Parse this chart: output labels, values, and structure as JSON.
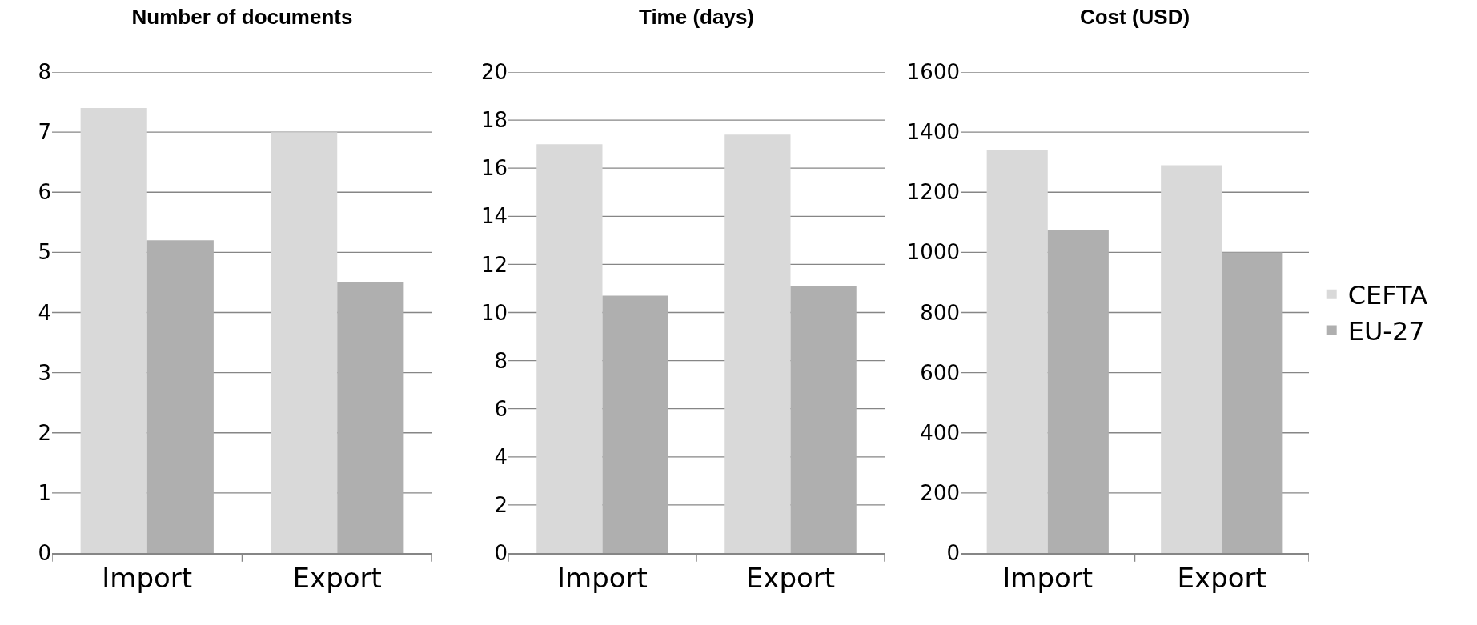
{
  "chart_data": [
    {
      "type": "bar",
      "title": "Number of documents",
      "categories": [
        "Import",
        "Export"
      ],
      "series": [
        {
          "color": "#d9d9d9",
          "values": [
            7.4,
            7.0
          ]
        },
        {
          "color": "#afafaf",
          "values": [
            5.2,
            4.5
          ]
        }
      ],
      "ylim": [
        0,
        8
      ],
      "yticks": [
        0,
        1,
        2,
        3,
        4,
        5,
        6,
        7,
        8
      ],
      "grid": "y",
      "legend": false
    },
    {
      "type": "bar",
      "title": "Time (days)",
      "categories": [
        "Import",
        "Export"
      ],
      "series": [
        {
          "color": "#d9d9d9",
          "values": [
            17.0,
            17.4
          ]
        },
        {
          "color": "#afafaf",
          "values": [
            10.7,
            11.1
          ]
        }
      ],
      "ylim": [
        0,
        20
      ],
      "yticks": [
        0,
        2,
        4,
        6,
        8,
        10,
        12,
        14,
        16,
        18,
        20
      ],
      "grid": "y",
      "legend": false
    },
    {
      "type": "bar",
      "title": "Cost (USD)",
      "categories": [
        "Import",
        "Export"
      ],
      "series": [
        {
          "name": "CEFTA",
          "color": "#d9d9d9",
          "values": [
            1340,
            1290
          ]
        },
        {
          "name": "EU-27",
          "color": "#afafaf",
          "values": [
            1075,
            1000
          ]
        }
      ],
      "ylim": [
        0,
        1600
      ],
      "yticks": [
        0,
        200,
        400,
        600,
        800,
        1000,
        1200,
        1400,
        1600
      ],
      "grid": "y",
      "legend": "right"
    }
  ]
}
